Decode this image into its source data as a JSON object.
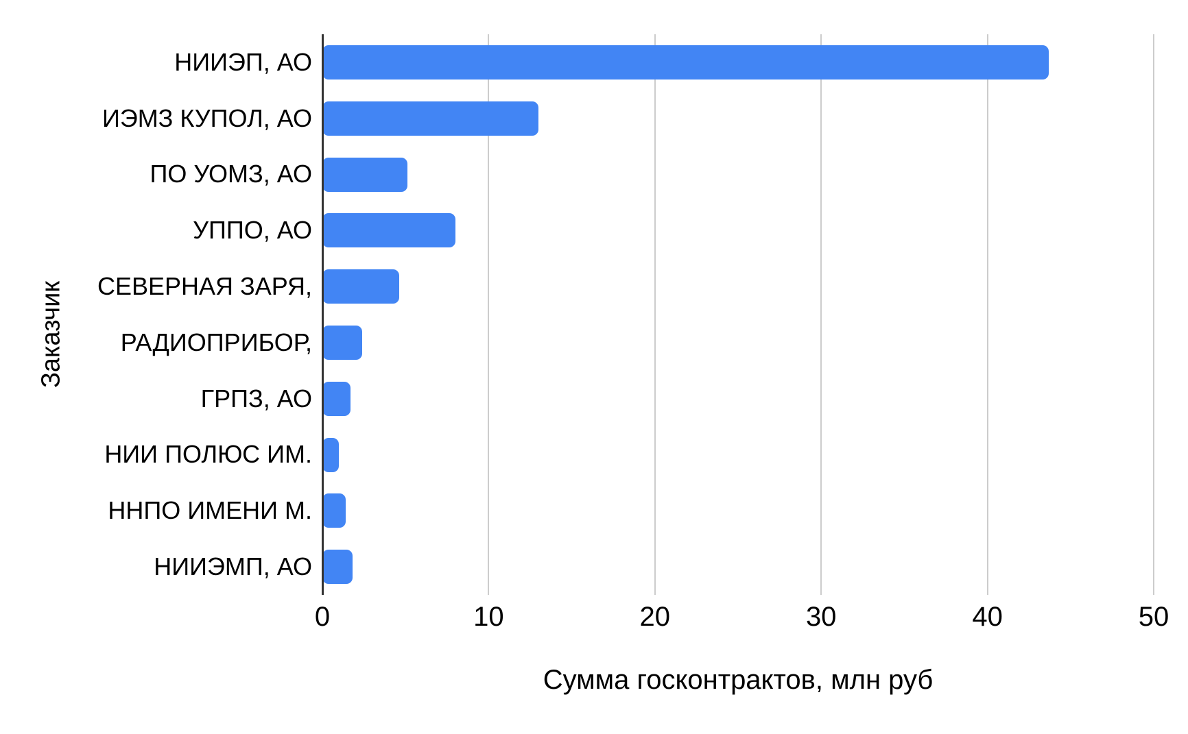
{
  "chart_data": {
    "type": "bar",
    "orientation": "horizontal",
    "title": "",
    "xlabel": "Сумма госконтрактов, млн руб",
    "ylabel": "Заказчик",
    "categories": [
      "НИИЭП, АО",
      "ИЭМЗ КУПОЛ, АО",
      "ПО УОМЗ, АО",
      "УППО, АО",
      "СЕВЕРНАЯ ЗАРЯ,",
      "РАДИОПРИБОР,",
      "ГРПЗ, АО",
      "НИИ ПОЛЮС ИМ.",
      "ННПО ИМЕНИ М.",
      "НИИЭМП, АО"
    ],
    "values": [
      43.7,
      13,
      5.1,
      8,
      4.6,
      2.4,
      1.7,
      1,
      1.4,
      1.8
    ],
    "xlim": [
      0,
      50
    ],
    "xticks": [
      0,
      10,
      20,
      30,
      40,
      50
    ],
    "grid": "vertical-only",
    "legend": "none",
    "bar_color": "#4285f4",
    "gridline_color": "#cccccc",
    "axis_line_color": "#333333",
    "text_color": "#000000"
  }
}
